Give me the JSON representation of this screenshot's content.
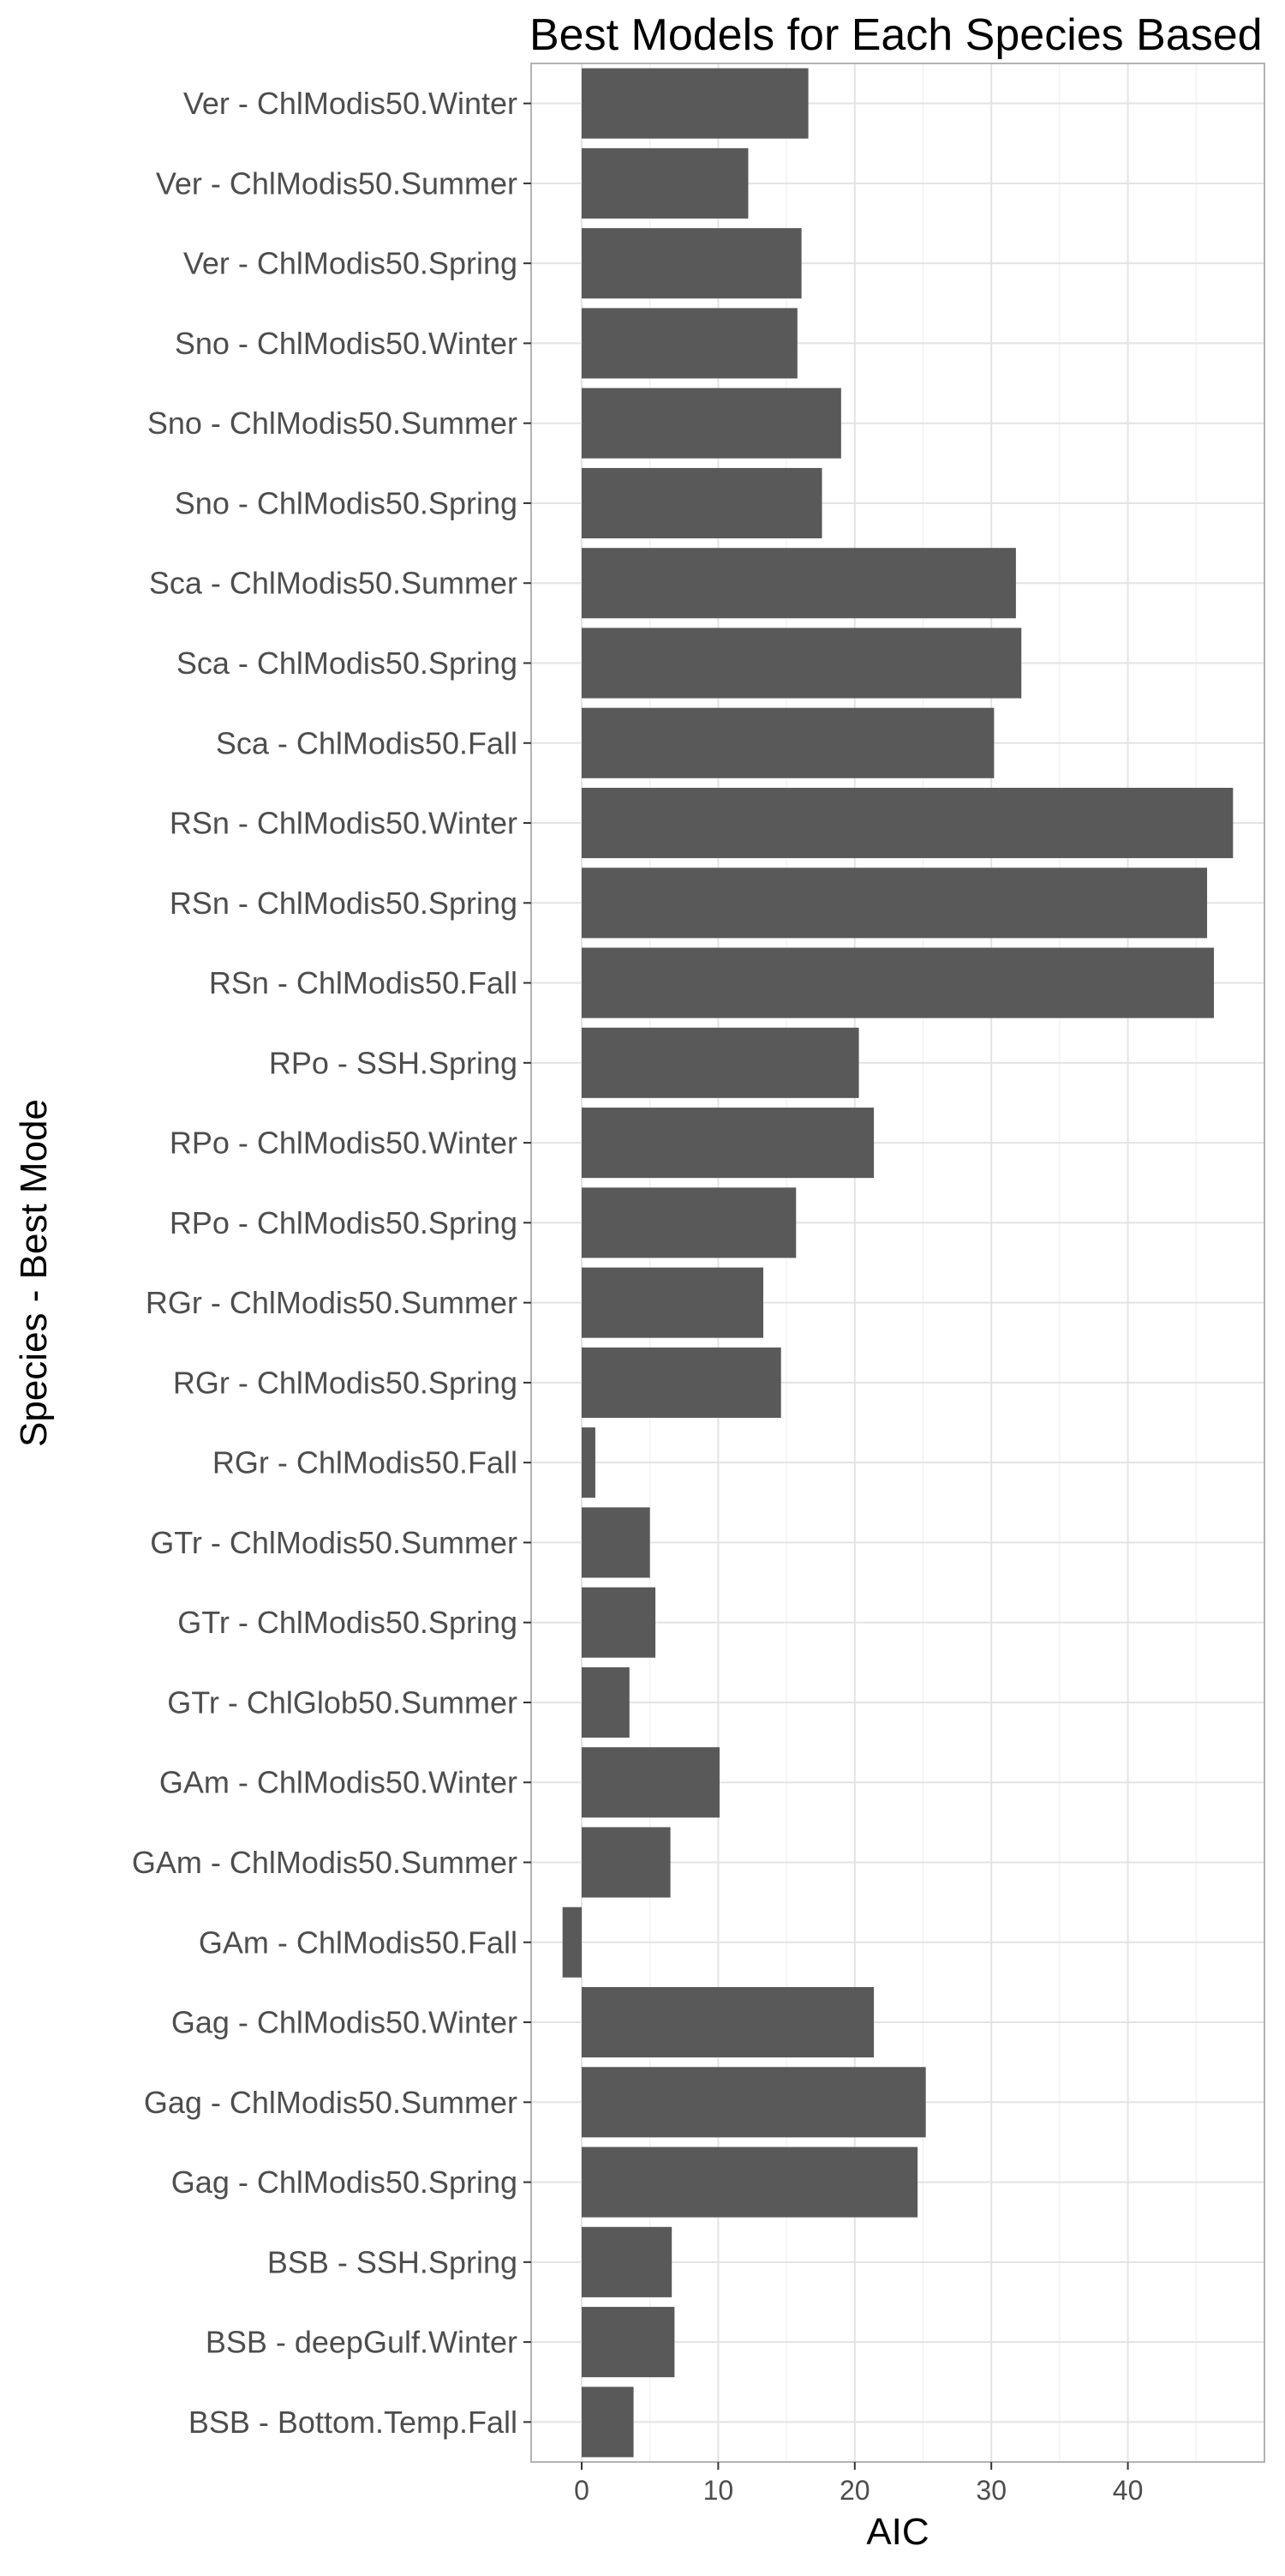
{
  "chart_data": {
    "type": "bar",
    "orientation": "horizontal",
    "title": "Best Models for Each Species Based",
    "xlabel": "AIC",
    "ylabel": "Species - Best Mode",
    "xlim": [
      -3.7,
      50.0
    ],
    "xticks": [
      0,
      10,
      20,
      30,
      40
    ],
    "grid": true,
    "bar_color": "#595959",
    "categories": [
      "Ver - ChlModis50.Winter",
      "Ver - ChlModis50.Summer",
      "Ver - ChlModis50.Spring",
      "Sno - ChlModis50.Winter",
      "Sno - ChlModis50.Summer",
      "Sno - ChlModis50.Spring",
      "Sca - ChlModis50.Summer",
      "Sca - ChlModis50.Spring",
      "Sca - ChlModis50.Fall",
      "RSn - ChlModis50.Winter",
      "RSn - ChlModis50.Spring",
      "RSn - ChlModis50.Fall",
      "RPo - SSH.Spring",
      "RPo - ChlModis50.Winter",
      "RPo - ChlModis50.Spring",
      "RGr - ChlModis50.Summer",
      "RGr - ChlModis50.Spring",
      "RGr - ChlModis50.Fall",
      "GTr - ChlModis50.Summer",
      "GTr - ChlModis50.Spring",
      "GTr - ChlGlob50.Summer",
      "GAm - ChlModis50.Winter",
      "GAm - ChlModis50.Summer",
      "GAm - ChlModis50.Fall",
      "Gag - ChlModis50.Winter",
      "Gag - ChlModis50.Summer",
      "Gag - ChlModis50.Spring",
      "BSB - SSH.Spring",
      "BSB - deepGulf.Winter",
      "BSB - Bottom.Temp.Fall"
    ],
    "values": [
      16.6,
      12.2,
      16.1,
      15.8,
      19.0,
      17.6,
      31.8,
      32.2,
      30.2,
      47.7,
      45.8,
      46.3,
      20.3,
      21.4,
      15.7,
      13.3,
      14.6,
      1.0,
      5.0,
      5.4,
      3.5,
      10.1,
      6.5,
      -1.4,
      21.4,
      25.2,
      24.6,
      6.6,
      6.8,
      3.8
    ]
  }
}
